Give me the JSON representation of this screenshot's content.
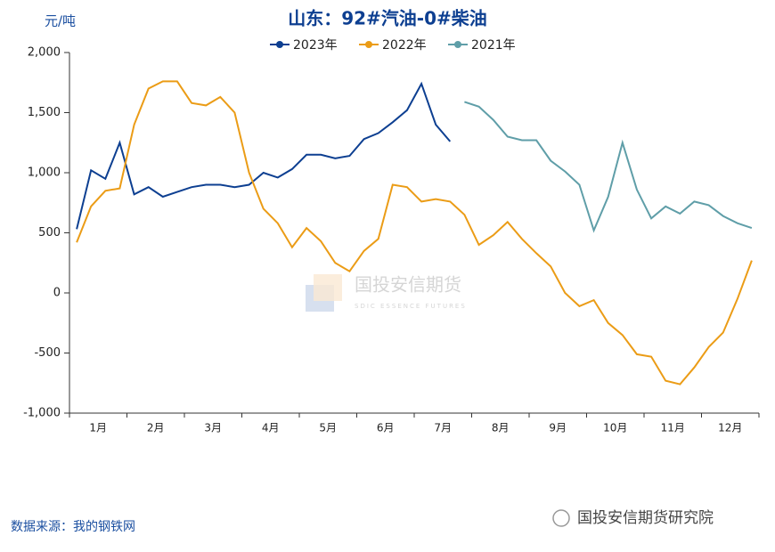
{
  "chart_data": {
    "type": "line",
    "title": "山东：92#汽油-0#柴油",
    "y_unit": "元/吨",
    "categories": [
      null,
      "1月",
      null,
      null,
      null,
      "2月",
      null,
      null,
      null,
      "3月",
      null,
      null,
      null,
      "4月",
      null,
      null,
      null,
      "5月",
      null,
      null,
      null,
      "6月",
      null,
      null,
      null,
      "7月",
      null,
      null,
      null,
      "8月",
      null,
      null,
      null,
      "9月",
      null,
      null,
      null,
      "10月",
      null,
      null,
      null,
      "11月",
      null,
      null,
      null,
      "12月",
      null,
      null
    ],
    "series": [
      {
        "name": "2023年",
        "color": "#0d3f91",
        "values": [
          530,
          1020,
          950,
          1250,
          820,
          880,
          800,
          840,
          880,
          900,
          900,
          880,
          900,
          1000,
          960,
          1030,
          1150,
          1150,
          1120,
          1140,
          1280,
          1330,
          1420,
          1520,
          1740,
          1400,
          1260,
          null,
          null,
          null,
          null,
          null,
          null,
          null,
          null,
          null,
          null,
          null,
          null,
          null,
          null,
          null,
          null,
          null,
          null,
          null,
          null,
          null
        ]
      },
      {
        "name": "2022年",
        "color": "#eb9c16",
        "values": [
          420,
          720,
          850,
          870,
          1400,
          1700,
          1760,
          1760,
          1580,
          1560,
          1630,
          1500,
          1000,
          700,
          580,
          380,
          540,
          430,
          250,
          180,
          350,
          450,
          900,
          880,
          760,
          780,
          760,
          650,
          400,
          480,
          590,
          450,
          330,
          220,
          0,
          -110,
          -60,
          -250,
          -350,
          -510,
          -530,
          -730,
          -760,
          -620,
          -450,
          -330,
          -50,
          270
        ]
      },
      {
        "name": "2021年",
        "color": "#5f9ea8",
        "values": [
          null,
          null,
          null,
          null,
          null,
          null,
          null,
          null,
          null,
          null,
          null,
          null,
          null,
          null,
          null,
          null,
          null,
          null,
          null,
          null,
          null,
          null,
          null,
          null,
          null,
          null,
          null,
          1590,
          1550,
          1440,
          1300,
          1270,
          1270,
          1100,
          1010,
          900,
          520,
          800,
          1250,
          860,
          620,
          720,
          660,
          760,
          730,
          640,
          580,
          540
        ]
      }
    ],
    "ylim": [
      -1000,
      2000
    ],
    "yticks": [
      {
        "value": -1000,
        "label": "-1,000"
      },
      -500,
      0,
      500,
      {
        "value": 1000,
        "label": "1,000"
      },
      {
        "value": 1500,
        "label": "1,500"
      },
      {
        "value": 2000,
        "label": "2,000"
      }
    ],
    "watermark": "国投安信期货",
    "watermark_en": "SDIC ESSENCE FUTURES",
    "source": "数据来源：我的钢铁网",
    "footer": "国投安信期货研究院"
  }
}
